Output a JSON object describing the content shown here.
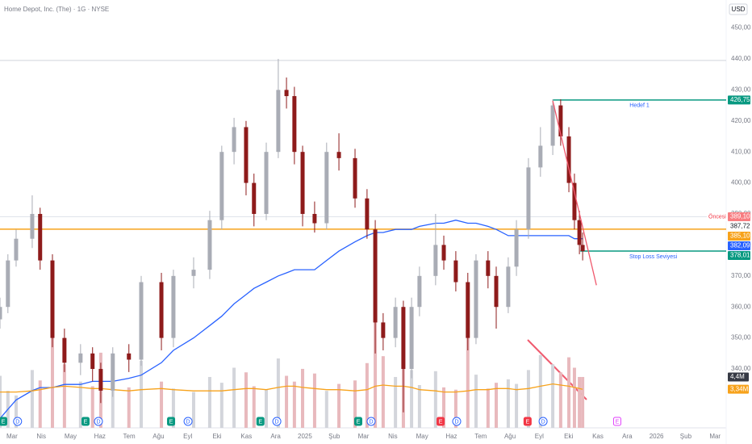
{
  "header": {
    "symbol": "Home Depot, Inc. (The) · 1G · NYSE",
    "currency": "USD"
  },
  "chart_data": {
    "type": "candlestick",
    "xlim": [
      -0.41,
      24.38
    ],
    "xticks": [
      {
        "value": 0,
        "label": "Mar"
      },
      {
        "value": 1,
        "label": "Nis"
      },
      {
        "value": 2,
        "label": "May"
      },
      {
        "value": 3,
        "label": "Haz"
      },
      {
        "value": 4,
        "label": "Tem"
      },
      {
        "value": 5,
        "label": "Ağu"
      },
      {
        "value": 6,
        "label": "Eyl"
      },
      {
        "value": 7,
        "label": "Eki"
      },
      {
        "value": 8,
        "label": "Kas"
      },
      {
        "value": 9,
        "label": "Ara"
      },
      {
        "value": 10,
        "label": "2025"
      },
      {
        "value": 11,
        "label": "Şub"
      },
      {
        "value": 12,
        "label": "Mar"
      },
      {
        "value": 13,
        "label": "Nis"
      },
      {
        "value": 14,
        "label": "May"
      },
      {
        "value": 15,
        "label": "Haz"
      },
      {
        "value": 16,
        "label": "Tem"
      },
      {
        "value": 17,
        "label": "Ağu"
      },
      {
        "value": 18,
        "label": "Eyl"
      },
      {
        "value": 19,
        "label": "Eki"
      },
      {
        "value": 20,
        "label": "Kas"
      },
      {
        "value": 21,
        "label": "Ara"
      },
      {
        "value": 22,
        "label": "2026"
      },
      {
        "value": 23,
        "label": "Şub"
      },
      {
        "value": 24,
        "label": "Mar"
      }
    ],
    "ylim": [
      321,
      459
    ],
    "yticks": [
      {
        "value": 340,
        "label": "340,00"
      },
      {
        "value": 350,
        "label": "350,00"
      },
      {
        "value": 360,
        "label": "360,00"
      },
      {
        "value": 370,
        "label": "370,00"
      },
      {
        "value": 380,
        "label": "380,00"
      },
      {
        "value": 390,
        "label": "390,00"
      },
      {
        "value": 400,
        "label": "400,00"
      },
      {
        "value": 410,
        "label": "410,00"
      },
      {
        "value": 420,
        "label": "420,00"
      },
      {
        "value": 430,
        "label": "430,00"
      },
      {
        "value": 440,
        "label": "440,00"
      },
      {
        "value": 450,
        "label": "450,00"
      }
    ],
    "y2lim": [
      0,
      37
    ],
    "up_color": "#a9acb5",
    "down_color": "#8e1b1b",
    "x": [
      -0.41,
      -0.14,
      0.14,
      0.69,
      0.96,
      1.38,
      1.79,
      2.34,
      2.75,
      3.03,
      3.44,
      3.99,
      4.41,
      5.1,
      5.51,
      6.2,
      6.75,
      7.16,
      7.58,
      7.99,
      8.26,
      8.68,
      9.09,
      9.37,
      9.64,
      9.92,
      10.33,
      10.74,
      11.16,
      11.71,
      12.12,
      12.4,
      12.67,
      13.09,
      13.36,
      13.64,
      13.91,
      14.46,
      14.74,
      15.15,
      15.56,
      15.84,
      16.25,
      16.53,
      16.94,
      17.22,
      17.63,
      18.04,
      18.46,
      18.73,
      19.01,
      19.2,
      19.37,
      19.48
    ],
    "open": [
      356,
      360,
      375,
      382,
      390,
      375,
      350,
      342,
      345,
      340,
      333,
      345,
      343,
      368,
      350,
      370,
      372,
      388,
      410,
      418,
      400,
      390,
      410,
      430,
      428,
      410,
      390,
      387,
      410,
      408,
      395,
      385,
      355,
      350,
      360,
      340,
      360,
      370,
      380,
      375,
      368,
      350,
      375,
      370,
      360,
      373,
      385,
      405,
      412,
      425,
      415,
      400,
      388,
      380
    ],
    "high": [
      363,
      377,
      385,
      396,
      392,
      377,
      353,
      348,
      347,
      342,
      347,
      348,
      370,
      371,
      372,
      376,
      391,
      412,
      421,
      420,
      403,
      413,
      440,
      434,
      431,
      412,
      394,
      413,
      416,
      411,
      398,
      388,
      358,
      363,
      362,
      363,
      373,
      390,
      383,
      378,
      371,
      377,
      378,
      373,
      376,
      388,
      408,
      418,
      427,
      427,
      418,
      403,
      391,
      384
    ],
    "low": [
      353,
      358,
      373,
      379,
      372,
      347,
      339,
      338,
      336,
      329,
      331,
      339,
      341,
      346,
      347,
      366,
      369,
      385,
      406,
      396,
      386,
      388,
      408,
      424,
      406,
      386,
      384,
      385,
      404,
      392,
      382,
      345,
      346,
      347,
      326,
      337,
      357,
      367,
      372,
      365,
      346,
      348,
      366,
      353,
      358,
      370,
      382,
      402,
      409,
      412,
      397,
      385,
      377,
      375
    ],
    "close": [
      360,
      375,
      382,
      390,
      375,
      350,
      342,
      345,
      340,
      333,
      345,
      343,
      368,
      350,
      370,
      372,
      388,
      410,
      418,
      400,
      390,
      410,
      430,
      428,
      410,
      390,
      387,
      410,
      408,
      395,
      385,
      355,
      350,
      360,
      340,
      360,
      370,
      380,
      375,
      368,
      350,
      375,
      370,
      360,
      373,
      385,
      405,
      412,
      425,
      415,
      400,
      388,
      380,
      378
    ],
    "series": [
      {
        "color": "#2962ff",
        "values": [
          324,
          327,
          330,
          333,
          334,
          334,
          335,
          335,
          336,
          336,
          336,
          337,
          338,
          342,
          346,
          350,
          354,
          357,
          361,
          364,
          366,
          368,
          370,
          371,
          372,
          372,
          372,
          375,
          378,
          381,
          383,
          384,
          384,
          385,
          385,
          385,
          386,
          387,
          387,
          388,
          387,
          387,
          386,
          385,
          383,
          383,
          383,
          383,
          383,
          383,
          383,
          382,
          382,
          382
        ]
      },
      {
        "color": "#d7b7bb",
        "axis": "y2",
        "values": [
          4.5,
          3.2,
          2.8,
          5.0,
          4.1,
          9.0,
          5.5,
          4.0,
          3.6,
          6.5,
          4.2,
          3.5,
          5.8,
          4.0,
          3.4,
          3.1,
          4.4,
          3.9,
          5.2,
          4.8,
          3.6,
          3.3,
          6.0,
          4.5,
          4.0,
          5.1,
          4.7,
          3.2,
          3.8,
          4.1,
          5.6,
          9.8,
          6.2,
          4.4,
          10.2,
          5.0,
          3.7,
          4.9,
          3.5,
          3.3,
          7.8,
          4.6,
          3.4,
          3.9,
          4.2,
          3.8,
          5.0,
          6.3,
          5.5,
          4.8,
          6.1,
          5.2,
          4.4,
          4.4
        ]
      },
      {
        "color": "#f7a21b",
        "axis": "y2",
        "values": [
          3.1,
          3.1,
          3.1,
          3.2,
          3.3,
          3.5,
          3.6,
          3.5,
          3.4,
          3.4,
          3.3,
          3.2,
          3.3,
          3.4,
          3.3,
          3.2,
          3.2,
          3.2,
          3.3,
          3.4,
          3.4,
          3.3,
          3.5,
          3.6,
          3.6,
          3.5,
          3.4,
          3.3,
          3.3,
          3.2,
          3.3,
          3.6,
          3.7,
          3.6,
          3.6,
          3.5,
          3.3,
          3.2,
          3.1,
          3.1,
          3.2,
          3.3,
          3.3,
          3.4,
          3.4,
          3.3,
          3.4,
          3.6,
          3.8,
          3.7,
          3.6,
          3.5,
          3.4,
          3.34
        ]
      }
    ],
    "levels": [
      {
        "value": 439.5,
        "color": "#d1d4dc"
      },
      {
        "value": 389.1,
        "color": "#e0e3eb"
      },
      {
        "value": 385.1,
        "color": "#f7a21b"
      },
      {
        "value": 426.75,
        "color": "#089981",
        "x0": 18.46,
        "text": "Hedef 1"
      },
      {
        "value": 378.01,
        "color": "#089981",
        "x0": 19.4,
        "text": "Stop Loss Seviyesi"
      }
    ],
    "trend_line": {
      "color": "#f05a6e",
      "x": [
        18.46,
        19.95
      ],
      "y": [
        426.5,
        367
      ]
    },
    "price_tags": [
      {
        "value": 426.75,
        "label": "426,75",
        "color": "#089981"
      },
      {
        "value": 389.1,
        "label": "389,10",
        "color": "#f77c80",
        "note": "Öncesi"
      },
      {
        "value": 387.72,
        "label": "387,72",
        "color": "#ffffff"
      },
      {
        "value": 385.1,
        "label": "385,10",
        "color": "#f7a21b"
      },
      {
        "value": 382.09,
        "label": "382,09",
        "color": "#2962ff"
      },
      {
        "value": 378.01,
        "label": "378,01",
        "color": "#089981"
      }
    ],
    "volume_tags": [
      {
        "value": 4.4,
        "label": "4,4M",
        "color": "#363a45"
      },
      {
        "value": 3.34,
        "label": "3,34M",
        "color": "#f7a21b"
      }
    ],
    "events": [
      {
        "label": "E",
        "x": -0.3,
        "color": "#089981",
        "fill": true
      },
      {
        "label": "D",
        "x": 0.19,
        "color": "#2962ff",
        "fill": false
      },
      {
        "label": "E",
        "x": 2.51,
        "color": "#089981",
        "fill": true
      },
      {
        "label": "D",
        "x": 2.95,
        "color": "#2962ff",
        "fill": false
      },
      {
        "label": "E",
        "x": 5.43,
        "color": "#089981",
        "fill": true
      },
      {
        "label": "D",
        "x": 6.01,
        "color": "#2962ff",
        "fill": false
      },
      {
        "label": "E",
        "x": 8.48,
        "color": "#089981",
        "fill": true
      },
      {
        "label": "D",
        "x": 9.04,
        "color": "#2962ff",
        "fill": false
      },
      {
        "label": "E",
        "x": 11.82,
        "color": "#089981",
        "fill": true
      },
      {
        "label": "D",
        "x": 12.26,
        "color": "#2962ff",
        "fill": false
      },
      {
        "label": "E",
        "x": 14.63,
        "color": "#f23645",
        "fill": true
      },
      {
        "label": "D",
        "x": 15.18,
        "color": "#2962ff",
        "fill": false
      },
      {
        "label": "E",
        "x": 17.6,
        "color": "#f23645",
        "fill": true
      },
      {
        "label": "D",
        "x": 18.13,
        "color": "#2962ff",
        "fill": false
      },
      {
        "label": "E",
        "x": 20.66,
        "color": "#e040fb",
        "fill": false
      }
    ]
  }
}
